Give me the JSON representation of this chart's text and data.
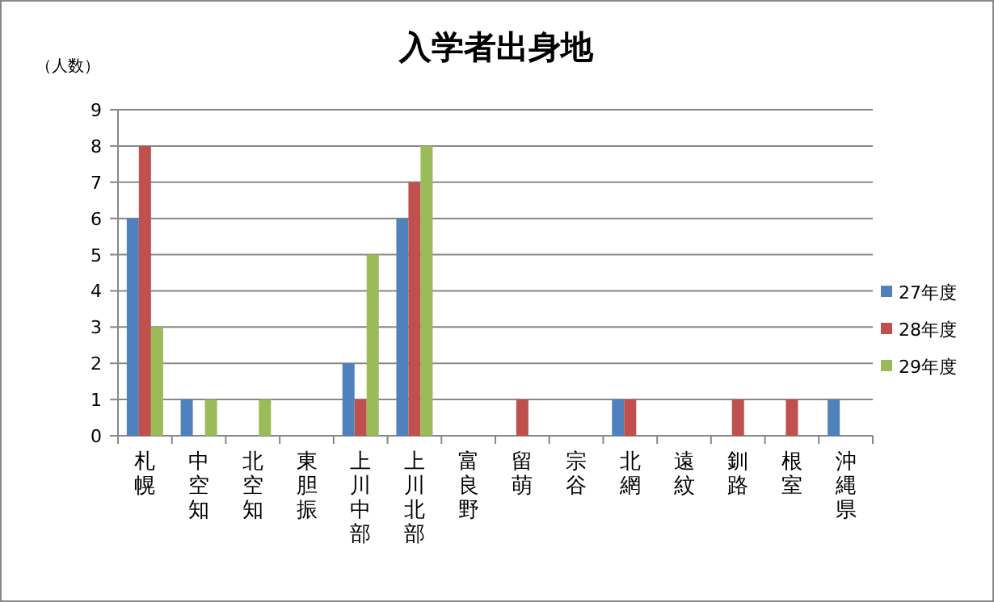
{
  "chart_data": {
    "type": "bar",
    "title": "入学者出身地",
    "ylabel": "（人数）",
    "categories": [
      "札幌",
      "中空知",
      "北空知",
      "東胆振",
      "上川中部",
      "上川北部",
      "富良野",
      "留萌",
      "宗谷",
      "北網",
      "遠紋",
      "釧路",
      "根室",
      "沖縄県"
    ],
    "series": [
      {
        "name": "27年度",
        "color": "#4f81bd",
        "values": [
          6,
          1,
          0,
          0,
          2,
          6,
          0,
          0,
          0,
          1,
          0,
          0,
          0,
          1
        ]
      },
      {
        "name": "28年度",
        "color": "#c0504d",
        "values": [
          8,
          0,
          0,
          0,
          1,
          7,
          0,
          1,
          0,
          1,
          0,
          1,
          1,
          0
        ]
      },
      {
        "name": "29年度",
        "color": "#9bbb59",
        "values": [
          3,
          1,
          1,
          0,
          5,
          8,
          0,
          0,
          0,
          0,
          0,
          0,
          0,
          0
        ]
      }
    ],
    "ylim": [
      0,
      9
    ],
    "yticks": [
      0,
      1,
      2,
      3,
      4,
      5,
      6,
      7,
      8,
      9
    ],
    "grid": "y",
    "legend": "right"
  }
}
